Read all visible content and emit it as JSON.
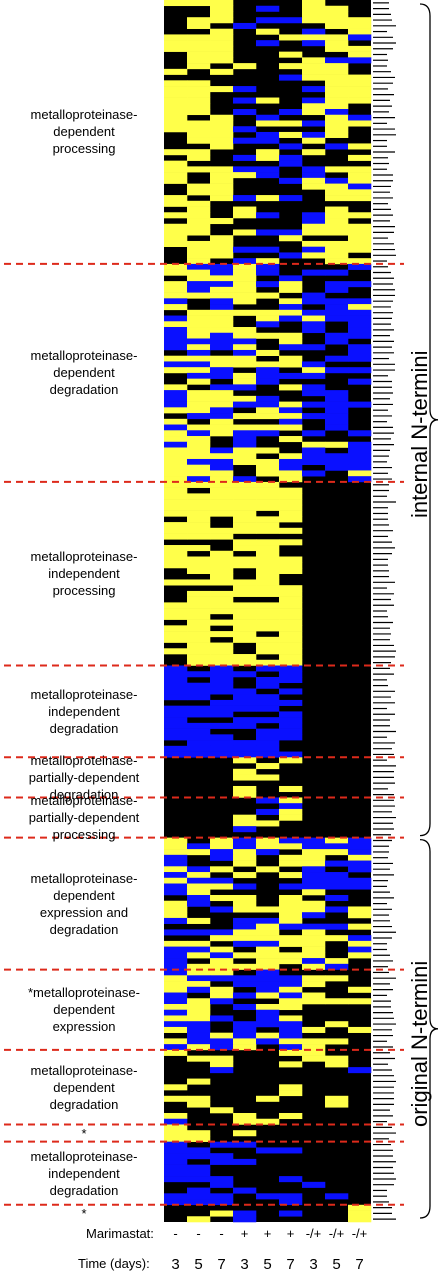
{
  "chart_data": {
    "type": "heatmap",
    "colors": {
      "up": "#ffff4a",
      "down": "#0a10ff",
      "none": "#000000",
      "divider": "#dd2a1b"
    },
    "columns": {
      "marimastat_label": "Marimastat:",
      "time_label": "Time (days):",
      "marimastat": [
        "-",
        "-",
        "-",
        "+",
        "+",
        "+",
        "-/+",
        "-/+",
        "-/+"
      ],
      "time": [
        "3",
        "5",
        "7",
        "3",
        "5",
        "7",
        "3",
        "5",
        "7"
      ]
    },
    "clusters": [
      {
        "label": "metalloproteinase-\ndependent\nprocessing",
        "rows": 46
      },
      {
        "label": "metalloproteinase-\ndependent\ndegradation",
        "rows": 38
      },
      {
        "label": "metalloproteinase-\nindependent\nprocessing",
        "rows": 32
      },
      {
        "label": "metalloproteinase-\nindependent\ndegradation",
        "rows": 16
      },
      {
        "label": "metalloproteinase-\npartially-dependent\ndegradation",
        "rows": 7
      },
      {
        "label": "metalloproteinase-\npartially-dependent\nprocessing",
        "rows": 7
      },
      {
        "label": "metalloproteinase-\ndependent\nexpression and\ndegradation",
        "rows": 23
      },
      {
        "label": "*metalloproteinase-\ndependent\nexpression",
        "rows": 14
      },
      {
        "label": "metalloproteinase-\ndependent\ndegradation",
        "rows": 13
      },
      {
        "label": "*",
        "rows": 3
      },
      {
        "label": "metalloproteinase-\nindependent\ndegradation",
        "rows": 11
      },
      {
        "label": "*",
        "rows": 3
      }
    ],
    "brackets": [
      {
        "label": "internal N-termini"
      },
      {
        "label": "original N-termini"
      }
    ]
  }
}
